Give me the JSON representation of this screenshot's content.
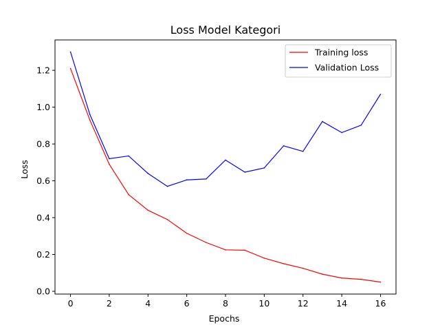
{
  "chart_data": {
    "type": "line",
    "title": "Loss Model Kategori",
    "xlabel": "Epochs",
    "ylabel": "Loss",
    "xlim": [
      -0.8,
      16.8
    ],
    "ylim": [
      -0.015,
      1.365
    ],
    "x_ticks": [
      0,
      2,
      4,
      6,
      8,
      10,
      12,
      14,
      16
    ],
    "y_ticks": [
      0.0,
      0.2,
      0.4,
      0.6,
      0.8,
      1.0,
      1.2
    ],
    "x_tick_labels": [
      "0",
      "2",
      "4",
      "6",
      "8",
      "10",
      "12",
      "14",
      "16"
    ],
    "y_tick_labels": [
      "0.0",
      "0.2",
      "0.4",
      "0.6",
      "0.8",
      "1.0",
      "1.2"
    ],
    "grid": false,
    "legend_position": "top-right",
    "x": [
      0,
      1,
      2,
      3,
      4,
      5,
      6,
      7,
      8,
      9,
      10,
      11,
      12,
      13,
      14,
      15,
      16
    ],
    "series": [
      {
        "name": "Training loss",
        "color": "#ff0000",
        "values": [
          1.21,
          0.93,
          0.69,
          0.525,
          0.44,
          0.39,
          0.315,
          0.265,
          0.225,
          0.223,
          0.18,
          0.15,
          0.125,
          0.093,
          0.072,
          0.065,
          0.05
        ]
      },
      {
        "name": "Validation Loss",
        "color": "#0000ff",
        "values": [
          1.3,
          0.96,
          0.72,
          0.735,
          0.64,
          0.57,
          0.605,
          0.61,
          0.713,
          0.647,
          0.67,
          0.79,
          0.76,
          0.922,
          0.862,
          0.902,
          1.07
        ]
      }
    ]
  }
}
